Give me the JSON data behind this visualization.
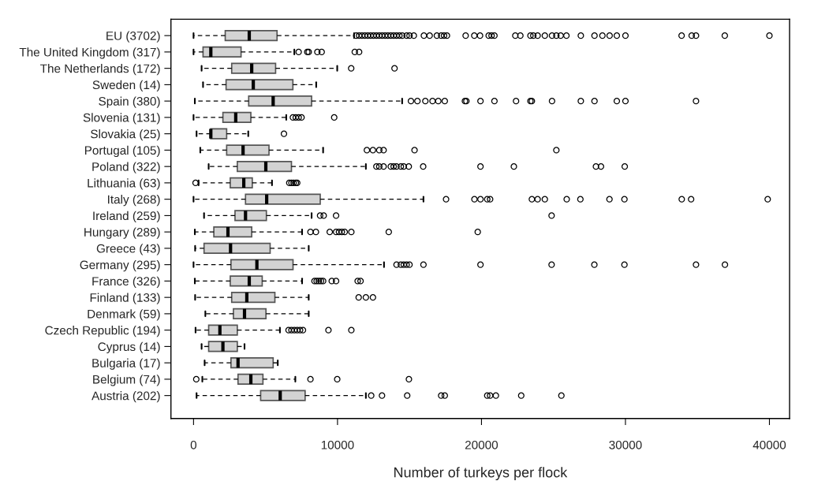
{
  "chart_data": {
    "type": "box",
    "orientation": "horizontal",
    "xlabel": "Number of turkeys per flock",
    "xlim": [
      -1570,
      41400
    ],
    "xticks": [
      0,
      10000,
      20000,
      30000,
      40000
    ],
    "grid": false,
    "color": "#d3d3d3",
    "categories": [
      "EU (3702)",
      "The United Kingdom (317)",
      "The Netherlands (172)",
      "Sweden (14)",
      "Spain (380)",
      "Slovenia (131)",
      "Slovakia (25)",
      "Portugal (105)",
      "Poland (322)",
      "Lithuania (63)",
      "Italy (268)",
      "Ireland (259)",
      "Hungary (289)",
      "Greece (43)",
      "Germany (295)",
      "France (326)",
      "Finland (133)",
      "Denmark (59)",
      "Czech Republic (194)",
      "Cyprus (14)",
      "Bulgaria (17)",
      "Belgium (74)",
      "Austria (202)"
    ],
    "boxes": [
      {
        "low": 0,
        "q1": 2200,
        "median": 3870,
        "q3": 5800,
        "high": 11150,
        "outliers": [
          11300,
          11500,
          11700,
          11900,
          12100,
          12300,
          12500,
          12700,
          12900,
          13100,
          13300,
          13500,
          13700,
          13900,
          14100,
          14300,
          14500,
          14800,
          15000,
          15300,
          16000,
          16400,
          16900,
          17200,
          17400,
          17600,
          18900,
          19500,
          19900,
          20500,
          20700,
          20900,
          22350,
          22700,
          23400,
          23600,
          23900,
          24400,
          24900,
          25200,
          25500,
          25900,
          26900,
          27850,
          28400,
          28900,
          29400,
          30000,
          33900,
          34600,
          34900,
          36900,
          40000
        ]
      },
      {
        "low": 0,
        "q1": 660,
        "median": 1200,
        "q3": 3300,
        "high": 7000,
        "outliers": [
          7300,
          7900,
          8000,
          8600,
          8900,
          11200,
          11500
        ]
      },
      {
        "low": 560,
        "q1": 2650,
        "median": 4040,
        "q3": 5700,
        "high": 9980,
        "outliers": [
          10950,
          13960
        ]
      },
      {
        "low": 660,
        "q1": 2260,
        "median": 4150,
        "q3": 6900,
        "high": 8520
      },
      {
        "low": 90,
        "q1": 3830,
        "median": 5530,
        "q3": 8200,
        "high": 14490,
        "outliers": [
          15100,
          15550,
          16100,
          16600,
          17000,
          17450,
          18850,
          18950,
          19930,
          20900,
          22400,
          23400,
          23500,
          24900,
          26900,
          27850,
          29400,
          30000,
          34900
        ]
      },
      {
        "low": 0,
        "q1": 2040,
        "median": 2930,
        "q3": 3980,
        "high": 6440,
        "outliers": [
          6900,
          7100,
          7300,
          7500,
          9770
        ]
      },
      {
        "low": 210,
        "q1": 1190,
        "median": 1200,
        "q3": 2300,
        "high": 3800,
        "outliers": [
          6280
        ]
      },
      {
        "low": 470,
        "q1": 2300,
        "median": 3440,
        "q3": 5240,
        "high": 9000,
        "outliers": [
          12040,
          12460,
          12900,
          13200,
          15350,
          25200
        ]
      },
      {
        "low": 1050,
        "q1": 3040,
        "median": 5020,
        "q3": 6800,
        "high": 11970,
        "outliers": [
          12700,
          12900,
          13200,
          13700,
          13900,
          14100,
          14400,
          14600,
          14950,
          15950,
          19930,
          22250,
          27950,
          28300,
          29950
        ]
      },
      {
        "low": 350,
        "q1": 2550,
        "median": 3490,
        "q3": 4080,
        "high": 5450,
        "outliers": [
          140,
          6650,
          6800,
          6950,
          7100,
          7200
        ]
      },
      {
        "low": 0,
        "q1": 3610,
        "median": 5080,
        "q3": 8800,
        "high": 15970,
        "outliers": [
          17540,
          19510,
          19930,
          20400,
          20600,
          23500,
          23900,
          24400,
          25920,
          26870,
          28890,
          29930,
          33910,
          34560,
          39880
        ]
      },
      {
        "low": 730,
        "q1": 2880,
        "median": 3610,
        "q3": 5060,
        "high": 8200,
        "outliers": [
          8790,
          9040,
          9900,
          24870
        ]
      },
      {
        "low": 90,
        "q1": 1410,
        "median": 2390,
        "q3": 4040,
        "high": 7540,
        "outliers": [
          8120,
          8500,
          9460,
          9900,
          10100,
          10300,
          10500,
          10960,
          13560,
          19740
        ]
      },
      {
        "low": 110,
        "q1": 730,
        "median": 2570,
        "q3": 5320,
        "high": 8000
      },
      {
        "low": 0,
        "q1": 2600,
        "median": 4400,
        "q3": 6910,
        "high": 13230,
        "outliers": [
          14100,
          14400,
          14600,
          14800,
          15000,
          15970,
          19930,
          24870,
          27840,
          29930,
          34900,
          36910
        ]
      },
      {
        "low": 90,
        "q1": 2550,
        "median": 3870,
        "q3": 4770,
        "high": 7540,
        "outliers": [
          8400,
          8550,
          8700,
          8850,
          9000,
          9600,
          9900,
          11400,
          11600
        ]
      },
      {
        "low": 110,
        "q1": 2650,
        "median": 3700,
        "q3": 5650,
        "high": 8000,
        "outliers": [
          11470,
          11970,
          12460
        ]
      },
      {
        "low": 820,
        "q1": 2770,
        "median": 3540,
        "q3": 5030,
        "high": 8000
      },
      {
        "low": 140,
        "q1": 1050,
        "median": 1830,
        "q3": 3040,
        "high": 6000,
        "outliers": [
          6600,
          6800,
          7000,
          7200,
          7400,
          7600,
          9370,
          10960
        ]
      },
      {
        "low": 560,
        "q1": 1050,
        "median": 2040,
        "q3": 3040,
        "high": 3540
      },
      {
        "low": 770,
        "q1": 2600,
        "median": 3090,
        "q3": 5530,
        "high": 5850
      },
      {
        "low": 610,
        "q1": 3090,
        "median": 3980,
        "q3": 4820,
        "high": 7070,
        "outliers": [
          190,
          8120,
          9980,
          14960
        ]
      },
      {
        "low": 210,
        "q1": 4660,
        "median": 6020,
        "q3": 7750,
        "high": 11970,
        "outliers": [
          12340,
          13090,
          14840,
          17200,
          17450,
          20400,
          20600,
          21000,
          22760,
          25550
        ]
      }
    ]
  }
}
